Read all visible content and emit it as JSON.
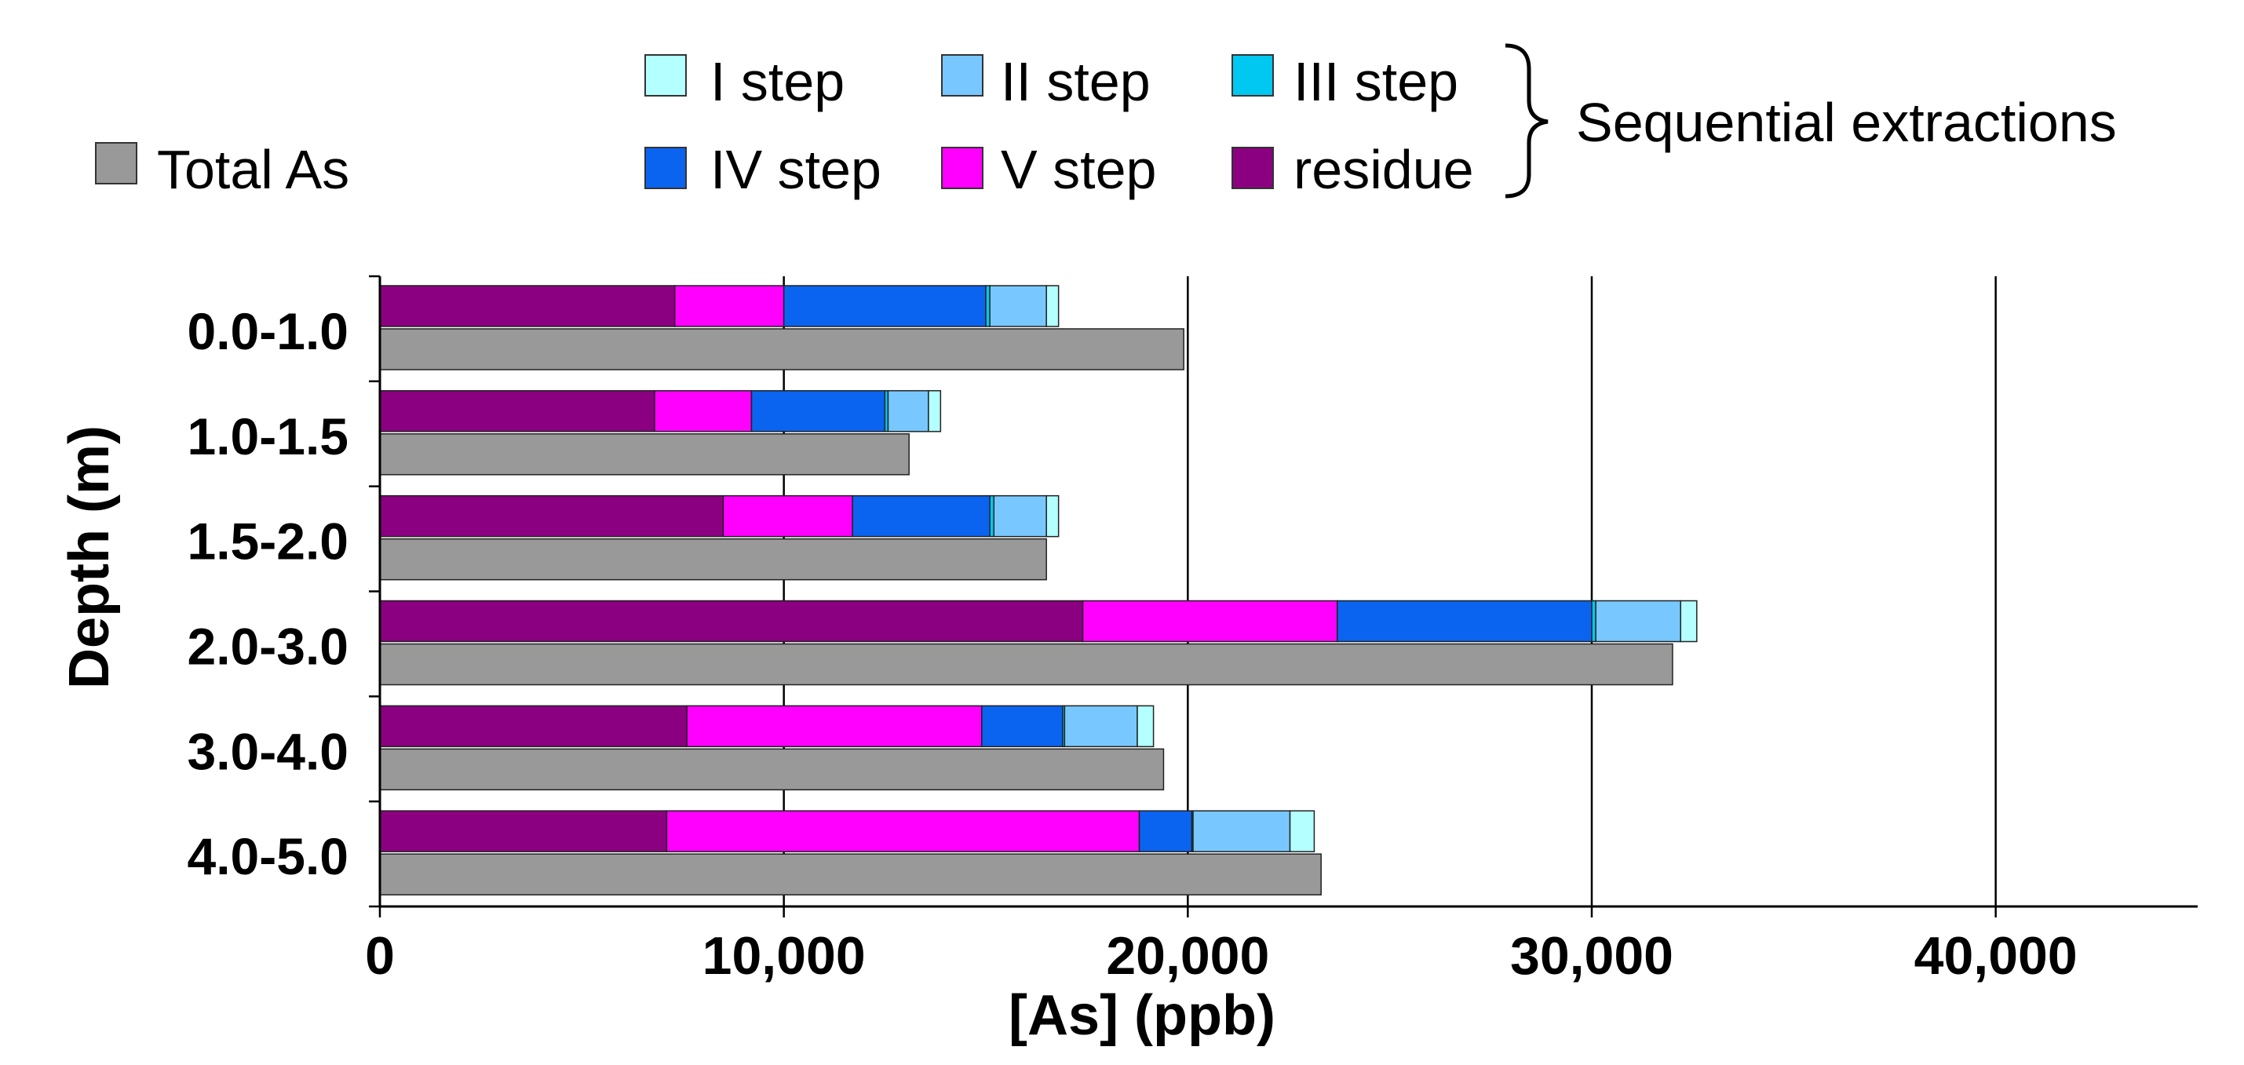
{
  "chart_data": {
    "type": "bar",
    "orientation": "horizontal",
    "stacked_group": "Sequential extractions",
    "xlabel": "[As] (ppb)",
    "ylabel": "Depth (m)",
    "xlim": [
      0,
      45000
    ],
    "x_ticks": [
      0,
      10000,
      20000,
      30000,
      40000
    ],
    "x_tick_labels": [
      "0",
      "10,000",
      "20,000",
      "30,000",
      "40,000"
    ],
    "gridlines": "vertical",
    "categories": [
      "0.0-1.0",
      "1.0-1.5",
      "1.5-2.0",
      "2.0-3.0",
      "3.0-4.0",
      "4.0-5.0"
    ],
    "stack_series": [
      {
        "name": "residue",
        "color": "#8B0080",
        "values": [
          7300,
          6800,
          8500,
          17400,
          7600,
          7100
        ]
      },
      {
        "name": "V step",
        "color": "#FF00FF",
        "values": [
          2700,
          2400,
          3200,
          6300,
          7300,
          11700
        ]
      },
      {
        "name": "IV step",
        "color": "#0A64F0",
        "values": [
          5000,
          3300,
          3400,
          6300,
          2000,
          1300
        ]
      },
      {
        "name": "III step",
        "color": "#00C8F0",
        "values": [
          100,
          80,
          100,
          100,
          50,
          30
        ]
      },
      {
        "name": "II step",
        "color": "#78C8FF",
        "values": [
          1400,
          1000,
          1300,
          2100,
          1800,
          2400
        ]
      },
      {
        "name": "I step",
        "color": "#B4FFFF",
        "values": [
          300,
          300,
          300,
          400,
          400,
          600
        ]
      }
    ],
    "total_series": {
      "name": "Total As",
      "color": "#999999",
      "values": [
        19900,
        13100,
        16500,
        32000,
        19400,
        23300
      ]
    },
    "legend": {
      "entries": [
        {
          "label": "I step",
          "color": "#B4FFFF"
        },
        {
          "label": "II step",
          "color": "#78C8FF"
        },
        {
          "label": "III step",
          "color": "#00C8F0"
        },
        {
          "label": "IV step",
          "color": "#0A64F0"
        },
        {
          "label": "V step",
          "color": "#FF00FF"
        },
        {
          "label": "residue",
          "color": "#8B0080"
        }
      ],
      "total_label": "Total As",
      "group_label": "Sequential extractions"
    }
  }
}
